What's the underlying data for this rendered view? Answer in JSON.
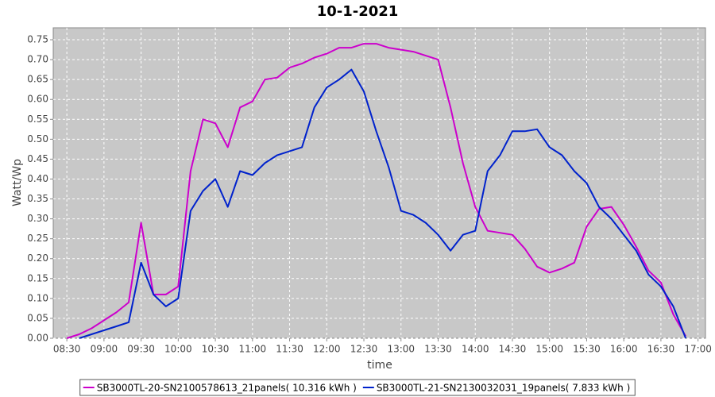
{
  "chart_data": {
    "type": "line",
    "title": "10-1-2021",
    "x_label": "time",
    "y_label": "Watt/Wp",
    "x": [
      "08:30",
      "08:40",
      "08:50",
      "09:00",
      "09:10",
      "09:20",
      "09:30",
      "09:40",
      "09:50",
      "10:00",
      "10:10",
      "10:20",
      "10:30",
      "10:40",
      "10:50",
      "11:00",
      "11:10",
      "11:20",
      "11:30",
      "11:40",
      "11:50",
      "12:00",
      "12:10",
      "12:20",
      "12:30",
      "12:40",
      "12:50",
      "13:00",
      "13:10",
      "13:20",
      "13:30",
      "13:40",
      "13:50",
      "14:00",
      "14:10",
      "14:20",
      "14:30",
      "14:40",
      "14:50",
      "15:00",
      "15:10",
      "15:20",
      "15:30",
      "15:40",
      "15:50",
      "16:00",
      "16:10",
      "16:20",
      "16:30",
      "16:40",
      "16:50"
    ],
    "series": [
      {
        "name": "SB3000TL-20-SN2100578613_21panels( 10.316 kWh )",
        "color": "#cc00cc",
        "values": [
          0.0,
          0.01,
          0.025,
          0.045,
          0.065,
          0.09,
          0.29,
          0.11,
          0.11,
          0.13,
          0.42,
          0.55,
          0.54,
          0.48,
          0.58,
          0.595,
          0.65,
          0.655,
          0.68,
          0.69,
          0.705,
          0.715,
          0.73,
          0.73,
          0.74,
          0.74,
          0.73,
          0.725,
          0.72,
          0.71,
          0.7,
          0.58,
          0.44,
          0.33,
          0.27,
          0.265,
          0.26,
          0.225,
          0.18,
          0.165,
          0.175,
          0.19,
          0.28,
          0.325,
          0.33,
          0.285,
          0.23,
          0.17,
          0.14,
          0.06,
          0.005
        ]
      },
      {
        "name": "SB3000TL-21-SN2130032031_19panels( 7.833 kWh )",
        "color": "#0022cc",
        "values": [
          null,
          0.0,
          0.01,
          0.02,
          0.03,
          0.04,
          0.19,
          0.11,
          0.08,
          0.1,
          0.32,
          0.37,
          0.4,
          0.33,
          0.42,
          0.41,
          0.44,
          0.46,
          0.47,
          0.48,
          0.58,
          0.63,
          0.65,
          0.675,
          0.62,
          0.52,
          0.43,
          0.32,
          0.31,
          0.29,
          0.26,
          0.22,
          0.26,
          0.27,
          0.42,
          0.46,
          0.52,
          0.52,
          0.525,
          0.48,
          0.46,
          0.42,
          0.39,
          0.33,
          0.3,
          0.26,
          0.22,
          0.16,
          0.13,
          0.08,
          0.0
        ]
      }
    ],
    "xlim": [
      "08:19",
      "17:06"
    ],
    "xticks": [
      "08:30",
      "09:00",
      "09:30",
      "10:00",
      "10:30",
      "11:00",
      "11:30",
      "12:00",
      "12:30",
      "13:00",
      "13:30",
      "14:00",
      "14:30",
      "15:00",
      "15:30",
      "16:00",
      "16:30",
      "17:00"
    ],
    "ylim": [
      0,
      0.78
    ],
    "yticks": [
      {
        "value": 0,
        "label": "0.00"
      },
      {
        "value": 0.05,
        "label": "0.05"
      },
      {
        "value": 0.1,
        "label": "0.10"
      },
      {
        "value": 0.15,
        "label": "0.15"
      },
      {
        "value": 0.2,
        "label": "0.20"
      },
      {
        "value": 0.25,
        "label": "0.25"
      },
      {
        "value": 0.3,
        "label": "0.30"
      },
      {
        "value": 0.35,
        "label": "0.35"
      },
      {
        "value": 0.4,
        "label": "0.40"
      },
      {
        "value": 0.45,
        "label": "0.45"
      },
      {
        "value": 0.5,
        "label": "0.50"
      },
      {
        "value": 0.55,
        "label": "0.55"
      },
      {
        "value": 0.6,
        "label": "0.60"
      },
      {
        "value": 0.65,
        "label": "0.65"
      },
      {
        "value": 0.7,
        "label": "0.70"
      },
      {
        "value": 0.75,
        "label": "0.75"
      }
    ],
    "grid": true
  }
}
